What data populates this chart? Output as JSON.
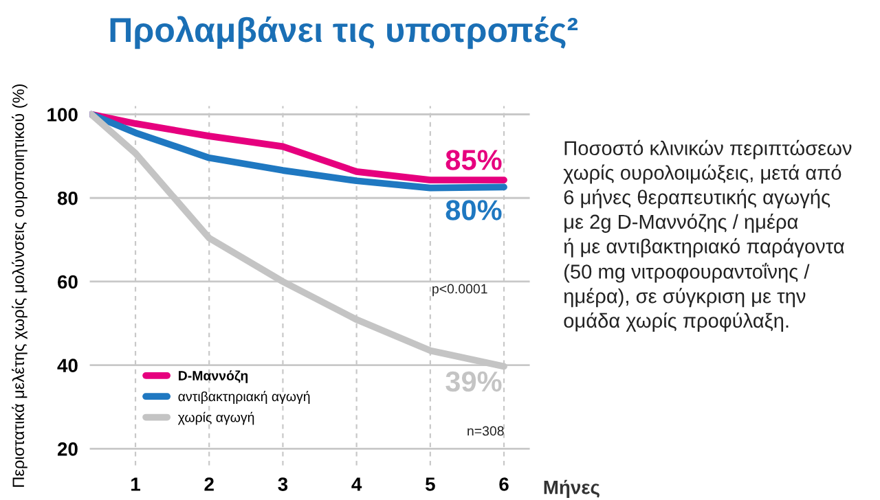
{
  "chart_data": {
    "type": "line",
    "title": "Προλαμβάνει τις υποτροπές²",
    "xlabel": "Μήνες",
    "ylabel": "Περιστατικά μελέτης χωρίς μολύνσεις ουροποιητικού (%)",
    "x": [
      0.4,
      1,
      2,
      3,
      4,
      5,
      6
    ],
    "series": [
      {
        "name": "D-Μαννόζη",
        "color": "#e6007e",
        "values": [
          100,
          97.8,
          94.8,
          92.3,
          86.3,
          84.3,
          84.3
        ]
      },
      {
        "name": "αντιβακτηριακή αγωγή",
        "color": "#1f78c1",
        "values": [
          100,
          95.6,
          89.6,
          86.6,
          84.1,
          82.4,
          82.6
        ]
      },
      {
        "name": "χωρίς αγωγή",
        "color": "#c4c4c4",
        "values": [
          100,
          90.7,
          70.4,
          60,
          50.9,
          43.5,
          39.7
        ]
      }
    ],
    "annotations": [
      "85%",
      "80%",
      "39%",
      "p<0.0001",
      "n=308",
      "Ποσοστό κλινικών περιπτώσεων\nχωρίς ουρολοιμώξεις, μετά από\n6 μήνες θεραπευτικής αγωγής\nμε 2g D-Μαννόζης / ημέρα\nή με αντιβακτηριακό παράγοντα\n(50 mg νιτροφουραντοΐνης /\nημέρα), σε σύγκριση με την\nομάδα χωρίς προφύλαξη."
    ],
    "xlim": [
      0.38,
      6.35
    ],
    "ylim": [
      16,
      102
    ],
    "xticks": [
      1,
      2,
      3,
      4,
      5,
      6
    ],
    "yticks": [
      20,
      40,
      60,
      80,
      100
    ],
    "grid": true,
    "legend": "bottom left",
    "marker": "none",
    "line_style": "solid"
  }
}
